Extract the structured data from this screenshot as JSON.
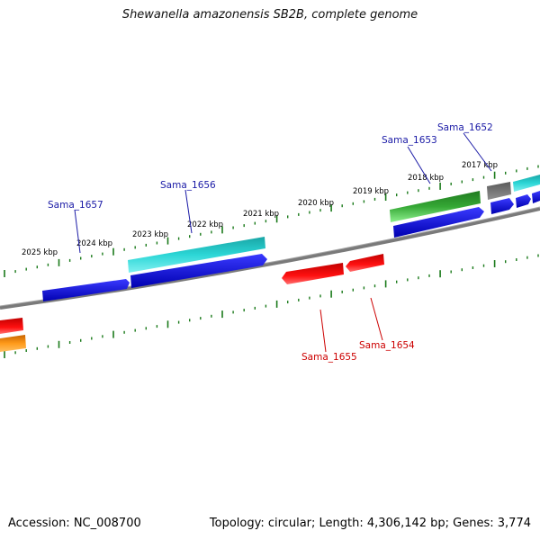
{
  "title": "Shewanella amazonensis SB2B, complete genome",
  "footer": {
    "accession": "Accession: NC_008700",
    "summary": "Topology: circular; Length: 4,306,142 bp; Genes: 3,774"
  },
  "scale_labels": [
    "2025 kbp",
    "2024 kbp",
    "2023 kbp",
    "2022 kbp",
    "2021 kbp",
    "2020 kbp",
    "2019 kbp",
    "2018 kbp",
    "2017 kbp"
  ],
  "gene_labels": {
    "forward": [
      "Sama_1657",
      "Sama_1656",
      "Sama_1653",
      "Sama_1652"
    ],
    "reverse": [
      "Sama_1655",
      "Sama_1654"
    ]
  },
  "colors": {
    "forward_label": "#1a1aa6",
    "reverse_label": "#cc0000",
    "tick": "#1a7a1a",
    "backbone": "#808080",
    "cds_blue": "#0000ee",
    "cds_cyan": "#22cccc",
    "cds_green": "#2e9a2e",
    "cds_red": "#ee0000",
    "cds_orange": "#ff8c00",
    "cds_gray": "#707070"
  }
}
